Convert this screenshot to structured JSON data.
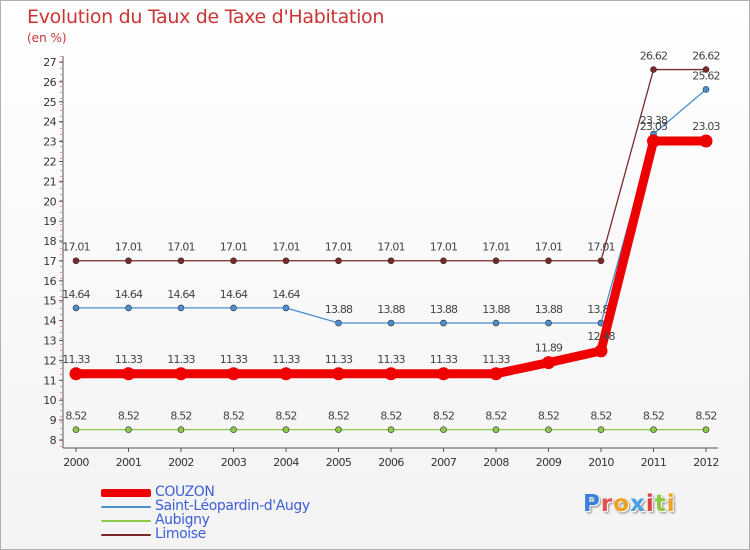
{
  "title": "Evolution du Taux de Taxe d'Habitation",
  "unit_label": "(en %)",
  "logo_text": "Proxiti",
  "chart_data": {
    "type": "line",
    "title": "Evolution du Taux de Taxe d'Habitation",
    "ylabel": "(en %)",
    "xlabel": "",
    "ylim": [
      8,
      27
    ],
    "yticks": [
      8,
      9,
      10,
      11,
      12,
      13,
      14,
      15,
      16,
      17,
      18,
      19,
      20,
      21,
      22,
      23,
      24,
      25,
      26,
      27
    ],
    "categories": [
      "2000",
      "2001",
      "2002",
      "2003",
      "2004",
      "2005",
      "2006",
      "2007",
      "2008",
      "2009",
      "2010",
      "2011",
      "2012"
    ],
    "grid": false,
    "legend_position": "bottom-left",
    "series": [
      {
        "name": "Limoise",
        "color": "#7a2a2a",
        "values": [
          17.01,
          17.01,
          17.01,
          17.01,
          17.01,
          17.01,
          17.01,
          17.01,
          17.01,
          17.01,
          17.01,
          26.62,
          26.62
        ],
        "labels": [
          "17.01",
          "17.01",
          "17.01",
          "17.01",
          "17.01",
          "17.01",
          "17.01",
          "17.01",
          "17.01",
          "17.01",
          "17.01",
          "26.62",
          "26.62"
        ]
      },
      {
        "name": "Saint-Léopardin-d'Augy",
        "color": "#4a8fd0",
        "values": [
          14.64,
          14.64,
          14.64,
          14.64,
          14.64,
          13.88,
          13.88,
          13.88,
          13.88,
          13.88,
          13.88,
          23.38,
          25.62
        ],
        "labels": [
          "14.64",
          "14.64",
          "14.64",
          "14.64",
          "14.64",
          "13.88",
          "13.88",
          "13.88",
          "13.88",
          "13.88",
          "13.88",
          "23.38",
          "25.62"
        ]
      },
      {
        "name": "Aubigny",
        "color": "#8cc84a",
        "values": [
          8.52,
          8.52,
          8.52,
          8.52,
          8.52,
          8.52,
          8.52,
          8.52,
          8.52,
          8.52,
          8.52,
          8.52,
          8.52
        ],
        "labels": [
          "8.52",
          "8.52",
          "8.52",
          "8.52",
          "8.52",
          "8.52",
          "8.52",
          "8.52",
          "8.52",
          "8.52",
          "8.52",
          "8.52",
          "8.52"
        ]
      },
      {
        "name": "COUZON",
        "color": "#ee0000",
        "values": [
          11.33,
          11.33,
          11.33,
          11.33,
          11.33,
          11.33,
          11.33,
          11.33,
          11.33,
          11.89,
          12.48,
          23.03,
          23.03
        ],
        "labels": [
          "11.33",
          "11.33",
          "11.33",
          "11.33",
          "11.33",
          "11.33",
          "11.33",
          "11.33",
          "11.33",
          "11.89",
          "12.48",
          "23.03",
          "23.03"
        ]
      }
    ],
    "legend": [
      "COUZON",
      "Saint-Léopardin-d'Augy",
      "Aubigny",
      "Limoise"
    ]
  }
}
